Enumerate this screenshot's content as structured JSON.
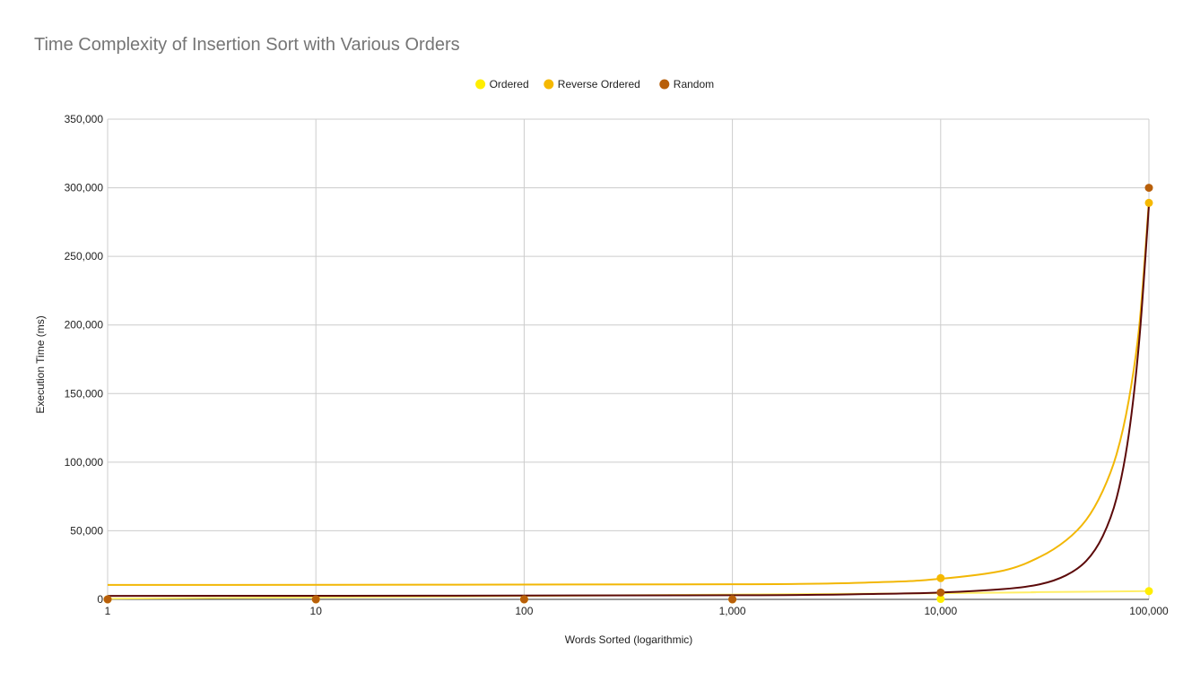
{
  "chart_data": {
    "type": "scatter",
    "title": "Time Complexity of Insertion Sort with Various Orders",
    "xlabel": "Words Sorted (logarithmic)",
    "ylabel": "Execution Time (ms)",
    "x_scale": "log",
    "xlim": [
      1,
      100000
    ],
    "ylim": [
      0,
      350000
    ],
    "grid": true,
    "legend_position": "top",
    "x_ticks": [
      "1",
      "10",
      "100",
      "1,000",
      "10,000",
      "100,000"
    ],
    "y_ticks": [
      "0",
      "50,000",
      "100,000",
      "150,000",
      "200,000",
      "250,000",
      "300,000",
      "350,000"
    ],
    "x_tick_values": [
      1,
      10,
      100,
      1000,
      10000,
      100000
    ],
    "y_tick_values": [
      0,
      50000,
      100000,
      150000,
      200000,
      250000,
      300000,
      350000
    ],
    "series": [
      {
        "name": "Ordered",
        "color": "#ffee00",
        "trendline_color": "#ffee66",
        "x": [
          1,
          10,
          100,
          1000,
          10000,
          100000
        ],
        "values": [
          0,
          0,
          0,
          0,
          300,
          6000
        ],
        "trendline": [
          [
            1,
            500
          ],
          [
            10000,
            4500
          ],
          [
            30000,
            5300
          ],
          [
            100000,
            6000
          ]
        ]
      },
      {
        "name": "Reverse Ordered",
        "color": "#f5b800",
        "trendline_color": "#f2b705",
        "x": [
          1,
          10,
          100,
          1000,
          10000,
          100000
        ],
        "values": [
          0,
          0,
          0,
          0,
          15500,
          289000
        ],
        "trendline": [
          [
            1,
            10500
          ],
          [
            1000,
            11000
          ],
          [
            5000,
            12500
          ],
          [
            10000,
            15000
          ],
          [
            20000,
            21000
          ],
          [
            30000,
            31000
          ],
          [
            40000,
            43000
          ],
          [
            50000,
            58000
          ],
          [
            60000,
            79000
          ],
          [
            70000,
            106000
          ],
          [
            80000,
            145000
          ],
          [
            90000,
            200000
          ],
          [
            100000,
            290000
          ]
        ]
      },
      {
        "name": "Random",
        "color": "#b85f0a",
        "trendline_color": "#5c0a0a",
        "x": [
          1,
          10,
          100,
          1000,
          10000,
          100000
        ],
        "values": [
          0,
          0,
          0,
          0,
          5000,
          300000
        ],
        "trendline": [
          [
            1,
            2500
          ],
          [
            1000,
            3000
          ],
          [
            5000,
            4000
          ],
          [
            10000,
            5000
          ],
          [
            20000,
            7500
          ],
          [
            30000,
            11000
          ],
          [
            40000,
            17500
          ],
          [
            50000,
            28000
          ],
          [
            60000,
            46000
          ],
          [
            70000,
            74000
          ],
          [
            80000,
            120000
          ],
          [
            90000,
            190000
          ],
          [
            100000,
            287000
          ]
        ]
      }
    ]
  }
}
